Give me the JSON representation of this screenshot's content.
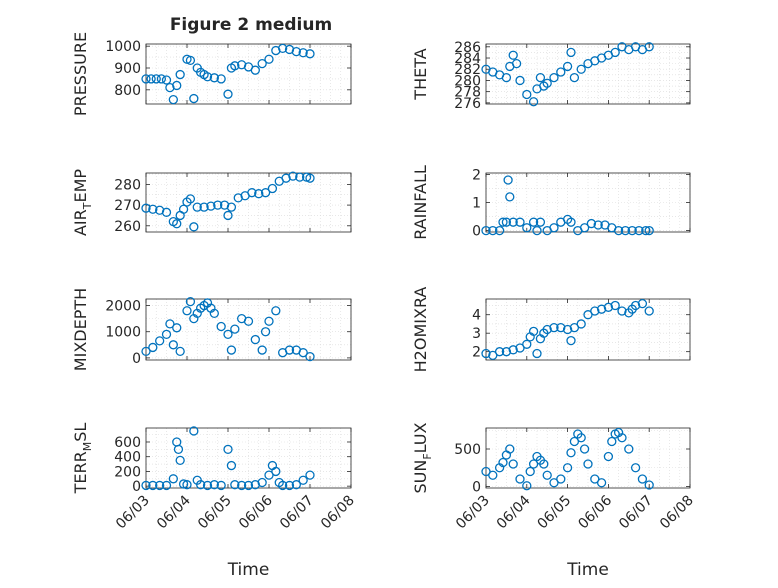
{
  "figure": {
    "title": "Figure 2 medium"
  },
  "style": {
    "marker_color": "#0072BD",
    "axis_color": "#262626",
    "grid_color": "#d9d9d9"
  },
  "chart_data": [
    {
      "id": "pressure",
      "type": "scatter",
      "marker": "circle",
      "ylabel": "PRESSURE",
      "ylabel_sub": "",
      "ylabel_tail": "",
      "yticks": [
        800,
        900,
        1000
      ],
      "ylim": [
        735,
        1010
      ],
      "x": [
        "06/03 00:00",
        "06/03 03:00",
        "06/03 06:00",
        "06/03 09:00",
        "06/03 12:00",
        "06/03 14:00",
        "06/03 16:00",
        "06/03 18:00",
        "06/03 20:00",
        "06/04 00:00",
        "06/04 02:00",
        "06/04 04:00",
        "06/04 06:00",
        "06/04 08:00",
        "06/04 10:00",
        "06/04 12:00",
        "06/04 16:00",
        "06/04 20:00",
        "06/05 00:00",
        "06/05 02:00",
        "06/05 04:00",
        "06/05 08:00",
        "06/05 12:00",
        "06/05 16:00",
        "06/05 20:00",
        "06/06 00:00",
        "06/06 04:00",
        "06/06 08:00",
        "06/06 12:00",
        "06/06 16:00",
        "06/06 20:00",
        "06/07 00:00"
      ],
      "y": [
        850,
        850,
        850,
        850,
        845,
        810,
        755,
        820,
        870,
        940,
        935,
        760,
        900,
        880,
        870,
        860,
        855,
        850,
        780,
        900,
        910,
        915,
        905,
        890,
        920,
        940,
        980,
        990,
        985,
        975,
        970,
        965
      ]
    },
    {
      "id": "theta",
      "type": "scatter",
      "marker": "circle",
      "ylabel": "THETA",
      "ylabel_sub": "",
      "ylabel_tail": "",
      "yticks": [
        276,
        278,
        280,
        282,
        284,
        286
      ],
      "ylim": [
        275.8,
        286.5
      ],
      "x": [
        "06/03 00:00",
        "06/03 04:00",
        "06/03 08:00",
        "06/03 12:00",
        "06/03 14:00",
        "06/03 16:00",
        "06/03 18:00",
        "06/03 20:00",
        "06/04 00:00",
        "06/04 04:00",
        "06/04 06:00",
        "06/04 08:00",
        "06/04 10:00",
        "06/04 12:00",
        "06/04 16:00",
        "06/04 20:00",
        "06/05 00:00",
        "06/05 02:00",
        "06/05 04:00",
        "06/05 08:00",
        "06/05 12:00",
        "06/05 16:00",
        "06/05 20:00",
        "06/06 00:00",
        "06/06 04:00",
        "06/06 08:00",
        "06/06 12:00",
        "06/06 16:00",
        "06/06 20:00",
        "06/07 00:00"
      ],
      "y": [
        282,
        281.5,
        281,
        280.5,
        282.5,
        284.5,
        283,
        280,
        277.5,
        276.2,
        278.5,
        280.5,
        279,
        279.5,
        280.5,
        281.5,
        282.5,
        285,
        280.5,
        282,
        283,
        283.5,
        284,
        284.5,
        285,
        286,
        285.5,
        286,
        285.5,
        286
      ]
    },
    {
      "id": "air_temp",
      "type": "scatter",
      "marker": "circle",
      "ylabel": "AIR",
      "ylabel_sub": "T",
      "ylabel_tail": "EMP",
      "yticks": [
        260,
        270,
        280
      ],
      "ylim": [
        257,
        285.5
      ],
      "x": [
        "06/03 00:00",
        "06/03 04:00",
        "06/03 08:00",
        "06/03 12:00",
        "06/03 16:00",
        "06/03 18:00",
        "06/03 20:00",
        "06/03 22:00",
        "06/04 00:00",
        "06/04 02:00",
        "06/04 04:00",
        "06/04 06:00",
        "06/04 10:00",
        "06/04 14:00",
        "06/04 18:00",
        "06/04 22:00",
        "06/05 00:00",
        "06/05 02:00",
        "06/05 06:00",
        "06/05 10:00",
        "06/05 14:00",
        "06/05 18:00",
        "06/05 22:00",
        "06/06 02:00",
        "06/06 06:00",
        "06/06 10:00",
        "06/06 14:00",
        "06/06 18:00",
        "06/06 22:00",
        "06/07 00:00"
      ],
      "y": [
        268.5,
        268,
        267.5,
        266.5,
        262,
        261,
        265,
        268,
        271.5,
        273,
        259.5,
        269,
        269,
        269.5,
        270,
        270,
        265,
        269,
        273.5,
        274.5,
        276,
        275.5,
        276,
        278,
        281.5,
        283,
        284,
        283.5,
        283.5,
        283
      ]
    },
    {
      "id": "rainfall",
      "type": "scatter",
      "marker": "circle",
      "ylabel": "RAINFALL",
      "ylabel_sub": "",
      "ylabel_tail": "",
      "yticks": [
        0,
        1,
        2
      ],
      "ylim": [
        -0.05,
        2.05
      ],
      "x": [
        "06/03 00:00",
        "06/03 04:00",
        "06/03 08:00",
        "06/03 10:00",
        "06/03 12:00",
        "06/03 13:00",
        "06/03 14:00",
        "06/03 16:00",
        "06/03 20:00",
        "06/04 00:00",
        "06/04 04:00",
        "06/04 06:00",
        "06/04 08:00",
        "06/04 12:00",
        "06/04 16:00",
        "06/04 20:00",
        "06/05 00:00",
        "06/05 02:00",
        "06/05 06:00",
        "06/05 10:00",
        "06/05 14:00",
        "06/05 18:00",
        "06/05 22:00",
        "06/06 02:00",
        "06/06 06:00",
        "06/06 10:00",
        "06/06 14:00",
        "06/06 18:00",
        "06/06 22:00",
        "06/07 00:00"
      ],
      "y": [
        0,
        0,
        0,
        0.3,
        0.3,
        1.8,
        1.2,
        0.3,
        0.3,
        0.1,
        0.3,
        0,
        0.3,
        0,
        0.1,
        0.3,
        0.4,
        0.3,
        0,
        0.1,
        0.25,
        0.2,
        0.2,
        0.1,
        0,
        0,
        0,
        0,
        0,
        0
      ]
    },
    {
      "id": "mixdepth",
      "type": "scatter",
      "marker": "circle",
      "ylabel": "MIXDEPTH",
      "ylabel_sub": "",
      "ylabel_tail": "",
      "yticks": [
        0,
        1000,
        2000
      ],
      "ylim": [
        -80,
        2250
      ],
      "x": [
        "06/03 00:00",
        "06/03 04:00",
        "06/03 08:00",
        "06/03 12:00",
        "06/03 14:00",
        "06/03 16:00",
        "06/03 18:00",
        "06/03 20:00",
        "06/04 00:00",
        "06/04 02:00",
        "06/04 04:00",
        "06/04 06:00",
        "06/04 08:00",
        "06/04 10:00",
        "06/04 12:00",
        "06/04 14:00",
        "06/04 16:00",
        "06/04 20:00",
        "06/05 00:00",
        "06/05 02:00",
        "06/05 04:00",
        "06/05 08:00",
        "06/05 12:00",
        "06/05 16:00",
        "06/05 20:00",
        "06/05 22:00",
        "06/06 00:00",
        "06/06 04:00",
        "06/06 08:00",
        "06/06 12:00",
        "06/06 16:00",
        "06/06 20:00",
        "06/07 00:00"
      ],
      "y": [
        250,
        400,
        650,
        900,
        1300,
        500,
        1150,
        250,
        1800,
        2150,
        1500,
        1700,
        1900,
        2000,
        2100,
        1900,
        1700,
        1200,
        900,
        300,
        1100,
        1500,
        1400,
        700,
        300,
        1000,
        1400,
        1800,
        200,
        300,
        300,
        200,
        50
      ]
    },
    {
      "id": "h2omixra",
      "type": "scatter",
      "marker": "circle",
      "ylabel": "H2OMIXRA",
      "ylabel_sub": "",
      "ylabel_tail": "",
      "yticks": [
        2,
        3,
        4
      ],
      "ylim": [
        1.55,
        4.85
      ],
      "x": [
        "06/03 00:00",
        "06/03 04:00",
        "06/03 08:00",
        "06/03 12:00",
        "06/03 16:00",
        "06/03 20:00",
        "06/04 00:00",
        "06/04 02:00",
        "06/04 04:00",
        "06/04 06:00",
        "06/04 08:00",
        "06/04 10:00",
        "06/04 12:00",
        "06/04 16:00",
        "06/04 20:00",
        "06/05 00:00",
        "06/05 02:00",
        "06/05 04:00",
        "06/05 08:00",
        "06/05 12:00",
        "06/05 16:00",
        "06/05 20:00",
        "06/06 00:00",
        "06/06 04:00",
        "06/06 08:00",
        "06/06 12:00",
        "06/06 14:00",
        "06/06 16:00",
        "06/06 20:00",
        "06/07 00:00"
      ],
      "y": [
        1.9,
        1.8,
        2.0,
        2.0,
        2.1,
        2.2,
        2.4,
        2.8,
        3.1,
        1.9,
        2.7,
        3.0,
        3.2,
        3.3,
        3.3,
        3.2,
        2.6,
        3.3,
        3.5,
        4.0,
        4.2,
        4.3,
        4.4,
        4.5,
        4.2,
        4.1,
        4.3,
        4.5,
        4.6,
        4.2
      ]
    },
    {
      "id": "terr_msl",
      "type": "scatter",
      "marker": "circle",
      "ylabel": "TERR",
      "ylabel_sub": "M",
      "ylabel_tail": "SL",
      "yticks": [
        0,
        200,
        400,
        600
      ],
      "ylim": [
        -25,
        790
      ],
      "x": [
        "06/03 00:00",
        "06/03 04:00",
        "06/03 08:00",
        "06/03 12:00",
        "06/03 16:00",
        "06/03 18:00",
        "06/03 19:00",
        "06/03 20:00",
        "06/03 22:00",
        "06/04 00:00",
        "06/04 04:00",
        "06/04 06:00",
        "06/04 08:00",
        "06/04 12:00",
        "06/04 16:00",
        "06/04 20:00",
        "06/05 00:00",
        "06/05 02:00",
        "06/05 04:00",
        "06/05 08:00",
        "06/05 12:00",
        "06/05 16:00",
        "06/05 20:00",
        "06/06 00:00",
        "06/06 02:00",
        "06/06 04:00",
        "06/06 06:00",
        "06/06 08:00",
        "06/06 12:00",
        "06/06 16:00",
        "06/06 20:00",
        "06/07 00:00"
      ],
      "y": [
        10,
        10,
        10,
        10,
        100,
        600,
        500,
        350,
        30,
        20,
        750,
        80,
        20,
        10,
        20,
        10,
        500,
        280,
        20,
        10,
        10,
        20,
        50,
        150,
        280,
        200,
        50,
        10,
        10,
        20,
        80,
        150
      ]
    },
    {
      "id": "sun_flux",
      "type": "scatter",
      "marker": "circle",
      "ylabel": "SUN",
      "ylabel_sub": "F",
      "ylabel_tail": "LUX",
      "yticks": [
        0,
        500
      ],
      "ylim": [
        -20,
        780
      ],
      "x": [
        "06/03 00:00",
        "06/03 04:00",
        "06/03 08:00",
        "06/03 10:00",
        "06/03 12:00",
        "06/03 14:00",
        "06/03 16:00",
        "06/03 20:00",
        "06/04 00:00",
        "06/04 02:00",
        "06/04 04:00",
        "06/04 06:00",
        "06/04 08:00",
        "06/04 10:00",
        "06/04 12:00",
        "06/04 16:00",
        "06/04 20:00",
        "06/05 00:00",
        "06/05 02:00",
        "06/05 04:00",
        "06/05 06:00",
        "06/05 08:00",
        "06/05 10:00",
        "06/05 12:00",
        "06/05 16:00",
        "06/05 20:00",
        "06/06 00:00",
        "06/06 02:00",
        "06/06 04:00",
        "06/06 06:00",
        "06/06 08:00",
        "06/06 12:00",
        "06/06 16:00",
        "06/06 20:00",
        "06/07 00:00"
      ],
      "y": [
        200,
        150,
        250,
        320,
        420,
        500,
        300,
        100,
        10,
        200,
        300,
        400,
        350,
        300,
        150,
        50,
        100,
        250,
        450,
        600,
        700,
        650,
        500,
        300,
        100,
        50,
        400,
        600,
        700,
        720,
        650,
        500,
        250,
        100,
        20
      ]
    }
  ],
  "shared_x": {
    "ticks": [
      "06/03",
      "06/04",
      "06/05",
      "06/06",
      "06/07",
      "06/08"
    ],
    "label": "Time",
    "range": [
      "06/03",
      "06/08"
    ]
  }
}
